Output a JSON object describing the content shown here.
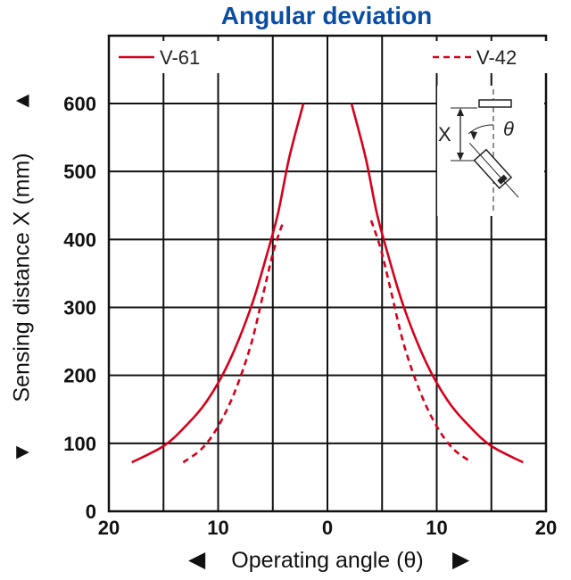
{
  "chart_data": {
    "type": "line",
    "title": "Angular deviation",
    "xlabel": "Operating angle (θ)",
    "ylabel": "Sensing distance X (mm)",
    "xlim": [
      -20,
      20
    ],
    "ylim": [
      0,
      600
    ],
    "grid": true,
    "legend": "top",
    "x_ticks": [
      {
        "value": -20,
        "label": "20"
      },
      {
        "value": -10,
        "label": "10"
      },
      {
        "value": 0,
        "label": "0"
      },
      {
        "value": 10,
        "label": "10"
      },
      {
        "value": 20,
        "label": "20"
      }
    ],
    "y_ticks": [
      {
        "value": 0,
        "label": "0"
      },
      {
        "value": 100,
        "label": "100"
      },
      {
        "value": 200,
        "label": "200"
      },
      {
        "value": 300,
        "label": "300"
      },
      {
        "value": 400,
        "label": "400"
      },
      {
        "value": 500,
        "label": "500"
      },
      {
        "value": 600,
        "label": "600"
      }
    ],
    "series": [
      {
        "name": "V-61",
        "style": "solid",
        "color": "#d6001c",
        "points": [
          [
            -17.9,
            72
          ],
          [
            -15,
            96
          ],
          [
            -13,
            125
          ],
          [
            -11,
            163
          ],
          [
            -9,
            220
          ],
          [
            -7,
            300
          ],
          [
            -5.5,
            380
          ],
          [
            -4.5,
            440
          ],
          [
            -3.5,
            520
          ],
          [
            -2.2,
            600
          ]
        ],
        "points_mirror": [
          [
            2.2,
            600
          ],
          [
            3.5,
            520
          ],
          [
            4.5,
            440
          ],
          [
            5.5,
            380
          ],
          [
            7,
            300
          ],
          [
            9,
            220
          ],
          [
            11,
            163
          ],
          [
            13,
            125
          ],
          [
            15,
            96
          ],
          [
            17.9,
            72
          ]
        ]
      },
      {
        "name": "V-42",
        "style": "dashed",
        "color": "#d6001c",
        "points": [
          [
            -13.2,
            72
          ],
          [
            -11.5,
            92
          ],
          [
            -10,
            125
          ],
          [
            -8.5,
            175
          ],
          [
            -7,
            245
          ],
          [
            -5.8,
            325
          ],
          [
            -4.9,
            385
          ],
          [
            -4,
            428
          ]
        ],
        "points_mirror": [
          [
            4,
            428
          ],
          [
            4.9,
            385
          ],
          [
            5.8,
            325
          ],
          [
            7,
            245
          ],
          [
            8.5,
            175
          ],
          [
            10,
            125
          ],
          [
            11.5,
            92
          ],
          [
            13.2,
            72
          ]
        ]
      }
    ],
    "inset": {
      "x_label": "X",
      "theta_label": "θ"
    },
    "arrows": {
      "left": "◀",
      "right": "▶",
      "up": "▲",
      "down": "▼"
    }
  }
}
